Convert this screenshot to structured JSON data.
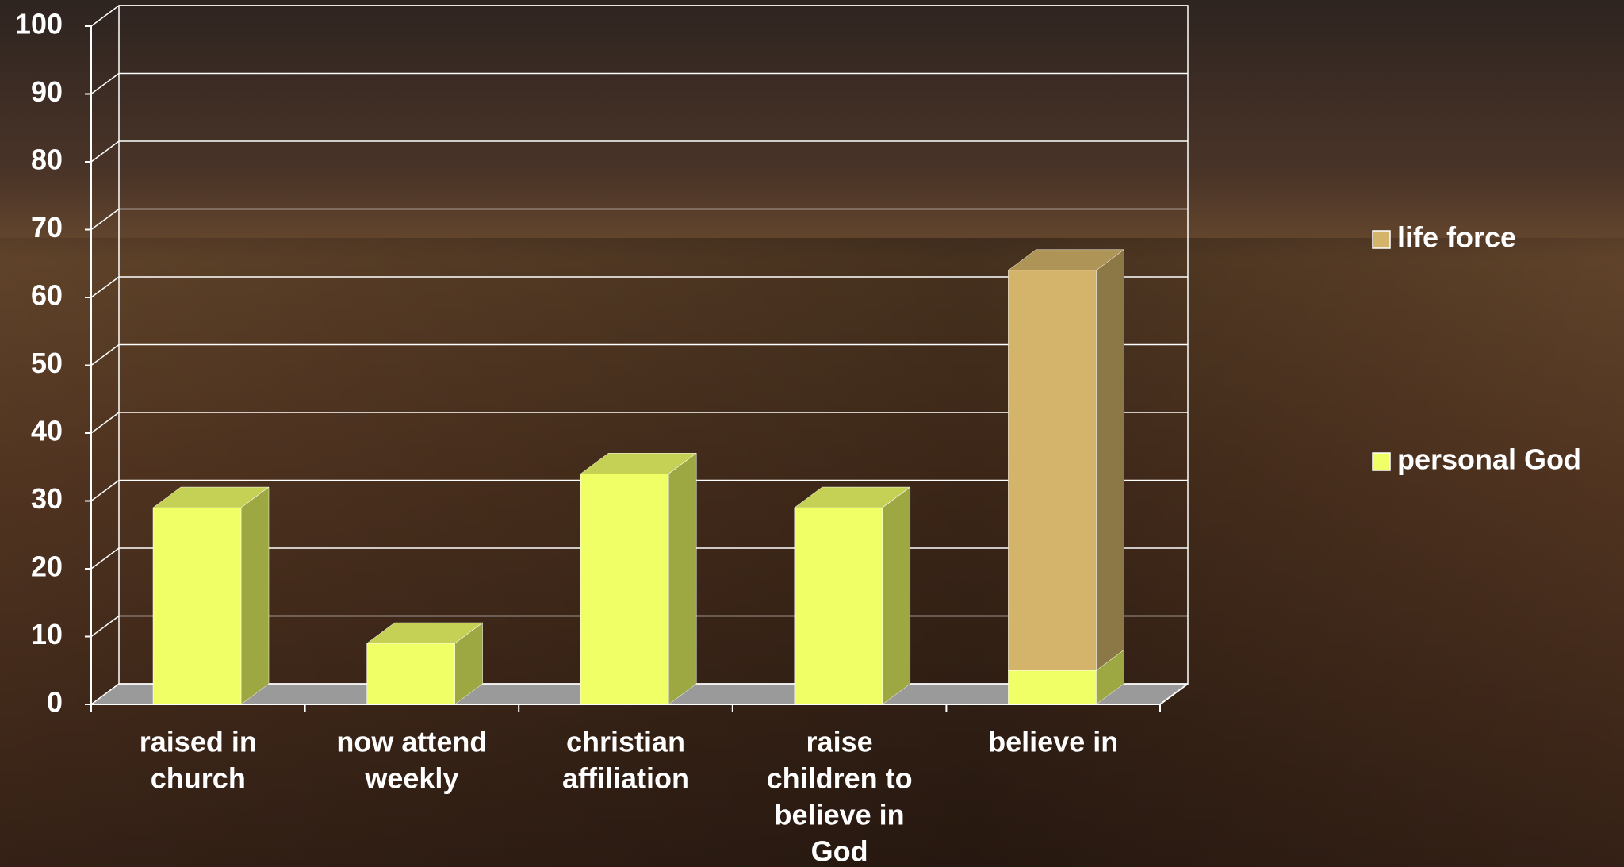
{
  "chart_data": {
    "type": "bar",
    "stacked": true,
    "three_d": true,
    "categories": [
      [
        "raised in",
        "church"
      ],
      [
        "now attend",
        "weekly"
      ],
      [
        "christian",
        "affiliation"
      ],
      [
        "raise",
        "children to",
        "believe in",
        "God"
      ],
      [
        "believe in"
      ]
    ],
    "series": [
      {
        "name": "personal God",
        "color": "#f0ff66",
        "values": [
          29,
          9,
          34,
          29,
          5
        ]
      },
      {
        "name": "life force",
        "color": "#d4b46a",
        "values": [
          0,
          0,
          0,
          0,
          59
        ]
      }
    ],
    "ylim": [
      0,
      100
    ],
    "yticks": [
      0,
      10,
      20,
      30,
      40,
      50,
      60,
      70,
      80,
      90,
      100
    ],
    "grid": true,
    "legend": "right"
  }
}
